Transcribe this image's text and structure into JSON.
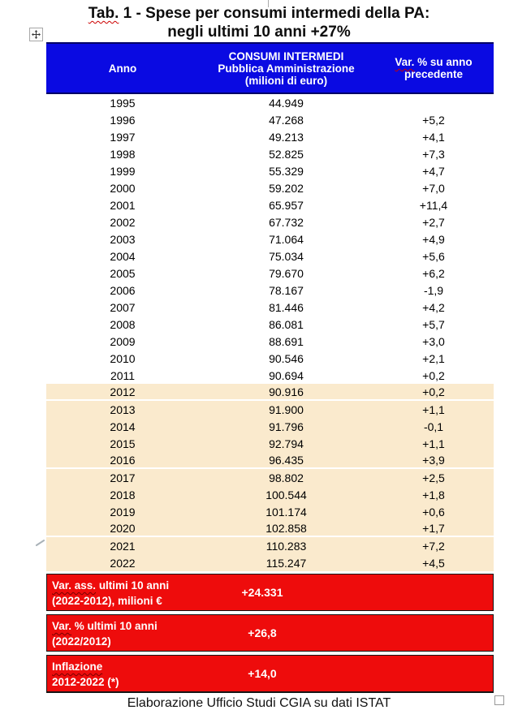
{
  "page": {
    "title_flag": "Tab.",
    "title_rest": " 1 - Spese per consumi intermedi della PA:",
    "title_line2": "negli ultimi 10 anni +27%",
    "caption": "Elaborazione Ufficio Studi CGIA su dati ISTAT"
  },
  "table": {
    "header": {
      "anno": "Anno",
      "consumi_lines": [
        "CONSUMI INTERMEDI",
        "Pubblica Amministrazione",
        "(milioni di euro)"
      ],
      "var_flag": "Var.",
      "var_rest": " % su anno",
      "var_line2": "precedente"
    },
    "rows": [
      {
        "year": "1995",
        "consumi": "44.949",
        "var": "",
        "highlight": false,
        "separator": false
      },
      {
        "year": "1996",
        "consumi": "47.268",
        "var": "+5,2",
        "highlight": false,
        "separator": false
      },
      {
        "year": "1997",
        "consumi": "49.213",
        "var": "+4,1",
        "highlight": false,
        "separator": false
      },
      {
        "year": "1998",
        "consumi": "52.825",
        "var": "+7,3",
        "highlight": false,
        "separator": false
      },
      {
        "year": "1999",
        "consumi": "55.329",
        "var": "+4,7",
        "highlight": false,
        "separator": false
      },
      {
        "year": "2000",
        "consumi": "59.202",
        "var": "+7,0",
        "highlight": false,
        "separator": false
      },
      {
        "year": "2001",
        "consumi": "65.957",
        "var": "+11,4",
        "highlight": false,
        "separator": false
      },
      {
        "year": "2002",
        "consumi": "67.732",
        "var": "+2,7",
        "highlight": false,
        "separator": false
      },
      {
        "year": "2003",
        "consumi": "71.064",
        "var": "+4,9",
        "highlight": false,
        "separator": false
      },
      {
        "year": "2004",
        "consumi": "75.034",
        "var": "+5,6",
        "highlight": false,
        "separator": false
      },
      {
        "year": "2005",
        "consumi": "79.670",
        "var": "+6,2",
        "highlight": false,
        "separator": false
      },
      {
        "year": "2006",
        "consumi": "78.167",
        "var": "-1,9",
        "highlight": false,
        "separator": false
      },
      {
        "year": "2007",
        "consumi": "81.446",
        "var": "+4,2",
        "highlight": false,
        "separator": false
      },
      {
        "year": "2008",
        "consumi": "86.081",
        "var": "+5,7",
        "highlight": false,
        "separator": false
      },
      {
        "year": "2009",
        "consumi": "88.691",
        "var": "+3,0",
        "highlight": false,
        "separator": false
      },
      {
        "year": "2010",
        "consumi": "90.546",
        "var": "+2,1",
        "highlight": false,
        "separator": false
      },
      {
        "year": "2011",
        "consumi": "90.694",
        "var": "+0,2",
        "highlight": false,
        "separator": false
      },
      {
        "year": "2012",
        "consumi": "90.916",
        "var": "+0,2",
        "highlight": true,
        "separator": true
      },
      {
        "year": "2013",
        "consumi": "91.900",
        "var": "+1,1",
        "highlight": true,
        "separator": false
      },
      {
        "year": "2014",
        "consumi": "91.796",
        "var": "-0,1",
        "highlight": true,
        "separator": false
      },
      {
        "year": "2015",
        "consumi": "92.794",
        "var": "+1,1",
        "highlight": true,
        "separator": false
      },
      {
        "year": "2016",
        "consumi": "96.435",
        "var": "+3,9",
        "highlight": true,
        "separator": true
      },
      {
        "year": "2017",
        "consumi": "98.802",
        "var": "+2,5",
        "highlight": true,
        "separator": false
      },
      {
        "year": "2018",
        "consumi": "100.544",
        "var": "+1,8",
        "highlight": true,
        "separator": false
      },
      {
        "year": "2019",
        "consumi": "101.174",
        "var": "+0,6",
        "highlight": true,
        "separator": false
      },
      {
        "year": "2020",
        "consumi": "102.858",
        "var": "+1,7",
        "highlight": true,
        "separator": true
      },
      {
        "year": "2021",
        "consumi": "110.283",
        "var": "+7,2",
        "highlight": true,
        "separator": false
      },
      {
        "year": "2022",
        "consumi": "115.247",
        "var": "+4,5",
        "highlight": true,
        "separator": false
      }
    ],
    "summary_rows": [
      {
        "flag": "Var. ass.",
        "rest": " ultimi 10 anni",
        "line2": "(2022-2012), milioni €",
        "value": "+24.331"
      },
      {
        "flag": "Var.",
        "rest": " % ultimi 10 anni",
        "line2": "(2022/2012)",
        "value": "+26,8"
      },
      {
        "flag": "Inflazione",
        "rest": "",
        "line2": "2012-2022 (*)",
        "value": "+14,0"
      }
    ]
  },
  "colors": {
    "header_bg": "#0A0AE2",
    "header_border": "#000066",
    "highlight_bg": "#FAEACD",
    "summary_bg": "#EE0C0C",
    "squiggle": "#CC0000",
    "squiggle_dark": "#7A0000"
  },
  "chart_data": {
    "type": "table",
    "title": "Tab. 1 - Spese per consumi intermedi della PA: negli ultimi 10 anni +27%",
    "columns": [
      "Anno",
      "CONSUMI INTERMEDI Pubblica Amministrazione (milioni di euro)",
      "Var. % su anno precedente"
    ],
    "years": [
      1995,
      1996,
      1997,
      1998,
      1999,
      2000,
      2001,
      2002,
      2003,
      2004,
      2005,
      2006,
      2007,
      2008,
      2009,
      2010,
      2011,
      2012,
      2013,
      2014,
      2015,
      2016,
      2017,
      2018,
      2019,
      2020,
      2021,
      2022
    ],
    "consumi_milioni_euro": [
      44949,
      47268,
      49213,
      52825,
      55329,
      59202,
      65957,
      67732,
      71064,
      75034,
      79670,
      78167,
      81446,
      86081,
      88691,
      90546,
      90694,
      90916,
      91900,
      91796,
      92794,
      96435,
      98802,
      100544,
      101174,
      102858,
      110283,
      115247
    ],
    "var_pct_anno_precedente": [
      null,
      5.2,
      4.1,
      7.3,
      4.7,
      7.0,
      11.4,
      2.7,
      4.9,
      5.6,
      6.2,
      -1.9,
      4.2,
      5.7,
      3.0,
      2.1,
      0.2,
      0.2,
      1.1,
      -0.1,
      1.1,
      3.9,
      2.5,
      1.8,
      0.6,
      1.7,
      7.2,
      4.5
    ],
    "highlighted_years": [
      2012,
      2013,
      2014,
      2015,
      2016,
      2017,
      2018,
      2019,
      2020,
      2021,
      2022
    ],
    "summary": {
      "var_ass_ultimi_10_anni_milioni_euro": 24331,
      "var_pct_ultimi_10_anni": 26.8,
      "inflazione_2012_2022_pct": 14.0
    },
    "source": "Elaborazione Ufficio Studi CGIA su dati ISTAT"
  }
}
